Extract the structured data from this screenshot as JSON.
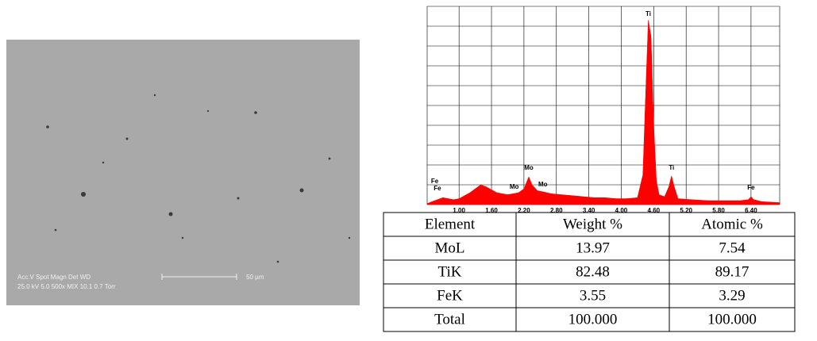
{
  "image": {
    "caption_line1": "Acc.V  Spot Magn    Det  WD",
    "caption_line2": "25.0 kV 5.0   500x    MIX  10.1   0.7 Torr",
    "scale_label": "50 µm"
  },
  "chart_data": {
    "type": "area",
    "color": "#ff0000",
    "grid": true,
    "x": [
      0.41,
      0.5,
      0.6,
      0.7,
      0.8,
      0.9,
      1.0,
      1.1,
      1.2,
      1.3,
      1.4,
      1.5,
      1.6,
      1.7,
      1.8,
      1.9,
      2.0,
      2.1,
      2.2,
      2.29,
      2.35,
      2.45,
      2.55,
      2.7,
      2.9,
      3.1,
      3.3,
      3.5,
      3.7,
      3.9,
      4.1,
      4.3,
      4.4,
      4.45,
      4.5,
      4.55,
      4.6,
      4.65,
      4.7,
      4.8,
      4.88,
      4.93,
      4.98,
      5.05,
      5.3,
      5.6,
      5.9,
      6.2,
      6.35,
      6.4,
      6.45,
      6.6,
      6.93
    ],
    "values": [
      0.05,
      0.15,
      0.25,
      0.35,
      0.3,
      0.25,
      0.3,
      0.45,
      0.6,
      0.8,
      1.0,
      0.9,
      0.75,
      0.6,
      0.55,
      0.5,
      0.55,
      0.6,
      0.8,
      1.4,
      1.0,
      0.7,
      0.65,
      0.55,
      0.5,
      0.45,
      0.4,
      0.35,
      0.35,
      0.3,
      0.3,
      0.35,
      1.5,
      5.5,
      9.3,
      8.5,
      4.0,
      1.2,
      0.5,
      0.4,
      0.9,
      1.45,
      0.9,
      0.3,
      0.25,
      0.2,
      0.2,
      0.2,
      0.25,
      0.4,
      0.25,
      0.15,
      0.1
    ],
    "xlim": [
      0.41,
      6.93
    ],
    "ylim": [
      0,
      10
    ],
    "xticks": [
      {
        "value": 1.0,
        "label": "1.00"
      },
      {
        "value": 1.6,
        "label": "1.60"
      },
      {
        "value": 2.2,
        "label": "2.20"
      },
      {
        "value": 2.8,
        "label": "2.80"
      },
      {
        "value": 3.4,
        "label": "3.40"
      },
      {
        "value": 4.0,
        "label": "4.00"
      },
      {
        "value": 4.6,
        "label": "4.60"
      },
      {
        "value": 5.2,
        "label": "5.20"
      },
      {
        "value": 5.8,
        "label": "5.80"
      },
      {
        "value": 6.4,
        "label": "6.40"
      }
    ],
    "yticks": [
      0,
      1,
      2,
      3,
      4,
      5,
      6,
      7,
      8,
      9,
      10
    ],
    "annotations": [
      {
        "text": "Fe",
        "x": 0.55
      },
      {
        "text": "Fe",
        "x": 0.6
      },
      {
        "text": "Mo",
        "x": 2.02
      },
      {
        "text": "Mo",
        "x": 2.29
      },
      {
        "text": "Mo",
        "x": 2.55
      },
      {
        "text": "Ti",
        "x": 4.5
      },
      {
        "text": "Ti",
        "x": 4.93
      },
      {
        "text": "Fe",
        "x": 6.4
      }
    ]
  },
  "table": {
    "header": [
      "Element",
      "Weight %",
      "Atomic %"
    ],
    "rows": [
      [
        "MoL",
        "13.97",
        "7.54"
      ],
      [
        "TiK",
        "82.48",
        "89.17"
      ],
      [
        "FeK",
        "3.55",
        "3.29"
      ],
      [
        "Total",
        "100.000",
        "100.000"
      ]
    ]
  }
}
